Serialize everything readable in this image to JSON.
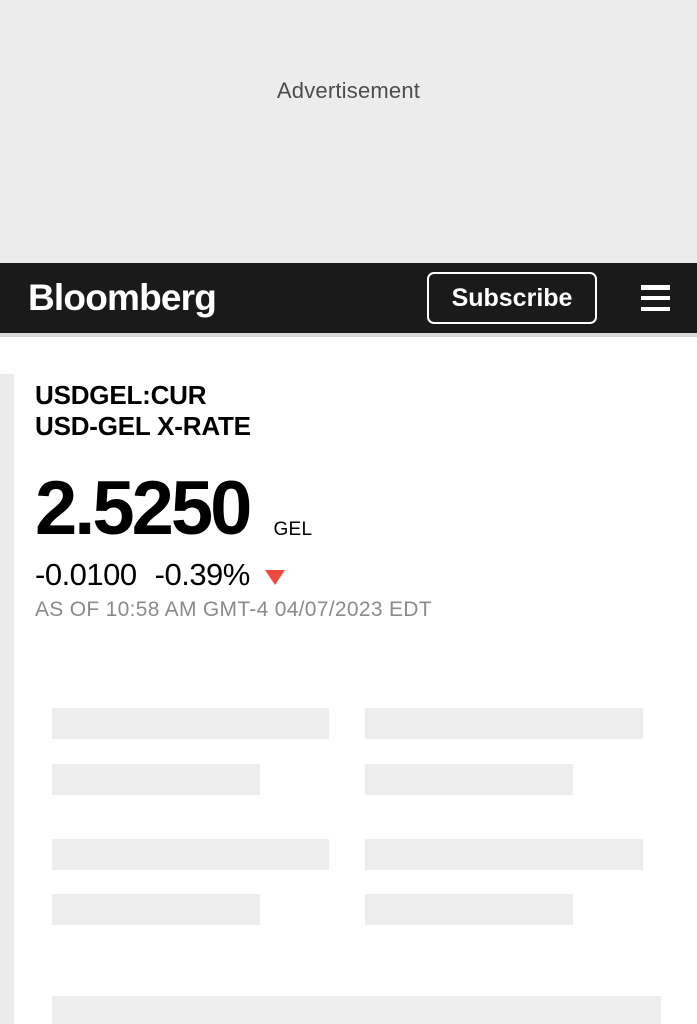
{
  "ad": {
    "label": "Advertisement"
  },
  "header": {
    "logo": "Bloomberg",
    "subscribe_label": "Subscribe",
    "menu_icon": "hamburger-menu"
  },
  "quote": {
    "ticker": "USDGEL:CUR",
    "name": "USD-GEL X-RATE",
    "price": "2.5250",
    "currency": "GEL",
    "change": "-0.0100",
    "percent_change": "-0.39%",
    "direction": "down",
    "direction_icon": "red-down-triangle",
    "as_of": "AS OF 10:58 AM GMT-4 04/07/2023 EDT"
  },
  "colors": {
    "header_bg": "#1a1a1a",
    "ad_bg": "#ececec",
    "skeleton": "#ededed",
    "down_red": "#f0483f",
    "muted_text": "#8b8b8b"
  }
}
